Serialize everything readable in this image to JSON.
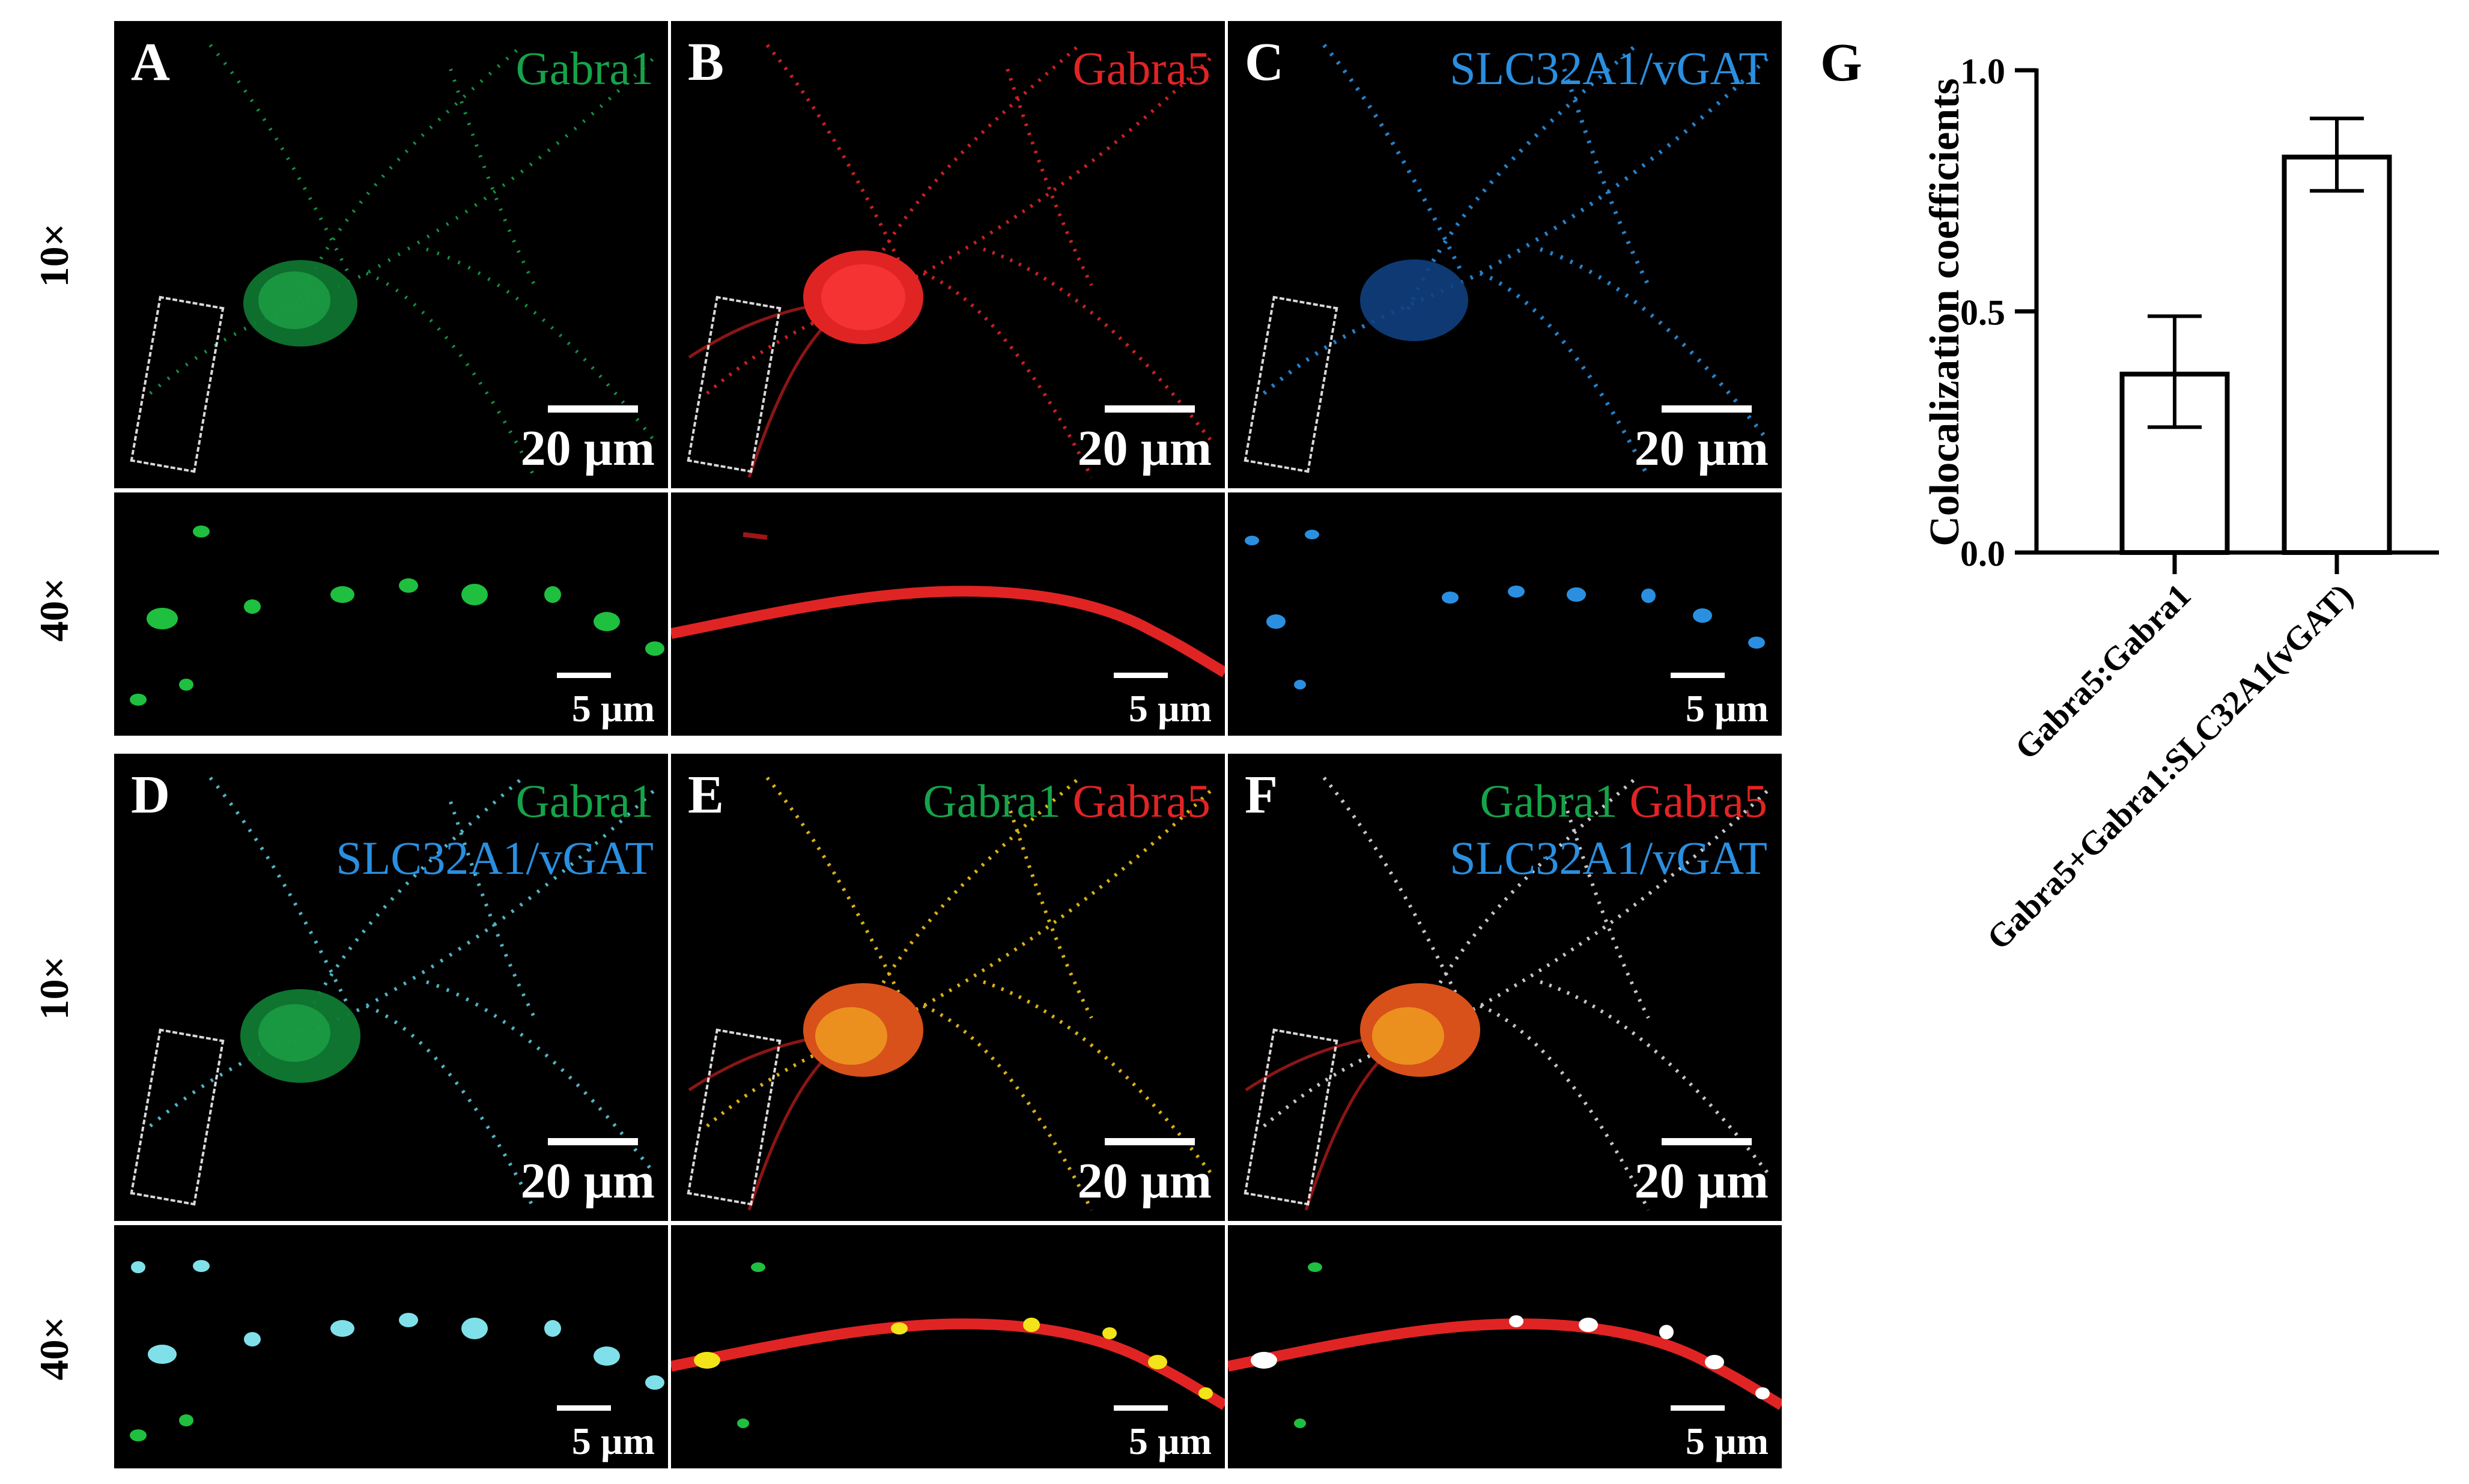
{
  "rows": {
    "r1": "10×",
    "r2": "40×",
    "r3": "10×",
    "r4": "40×"
  },
  "panels": {
    "A": {
      "letter": "A",
      "ch1": "Gabra1",
      "scale": "20 µm"
    },
    "B": {
      "letter": "B",
      "ch1": "Gabra5",
      "scale": "20 µm"
    },
    "C": {
      "letter": "C",
      "ch1": "SLC32A1/vGAT",
      "scale": "20 µm"
    },
    "A2": {
      "scale": "5 µm"
    },
    "B2": {
      "scale": "5 µm"
    },
    "C2": {
      "scale": "5 µm"
    },
    "D": {
      "letter": "D",
      "ch1": "Gabra1",
      "ch2": "SLC32A1/vGAT",
      "scale": "20 µm"
    },
    "E": {
      "letter": "E",
      "ch1": "Gabra1",
      "ch2": "Gabra5",
      "scale": "20 µm"
    },
    "F": {
      "letter": "F",
      "ch1": "Gabra1",
      "ch2": "Gabra5",
      "ch3": "SLC32A1/vGAT",
      "scale": "20 µm"
    },
    "D2": {
      "scale": "5 µm"
    },
    "E2": {
      "scale": "5 µm"
    },
    "F2": {
      "scale": "5 µm"
    }
  },
  "colors": {
    "green": "#16a34a",
    "red": "#e02424",
    "blue": "#2a8fe0",
    "cyan": "#5fd3e6",
    "yellow": "#f2c418"
  },
  "chart_data": {
    "panel_label": "G",
    "type": "bar",
    "categories": [
      "Gabra5:Gabra1",
      "Gabra5+Gabra1:SLC32A1(vGAT)"
    ],
    "values": [
      0.37,
      0.82
    ],
    "error_low": [
      0.26,
      0.75
    ],
    "error_high": [
      0.49,
      0.9
    ],
    "ylabel": "Colocalization coefficients",
    "xlabel": "",
    "ylim": [
      0.0,
      1.0
    ],
    "yticks": [
      0.0,
      0.5,
      1.0
    ],
    "ytick_labels": [
      "0.0",
      "0.5",
      "1.0"
    ],
    "grid": false
  }
}
